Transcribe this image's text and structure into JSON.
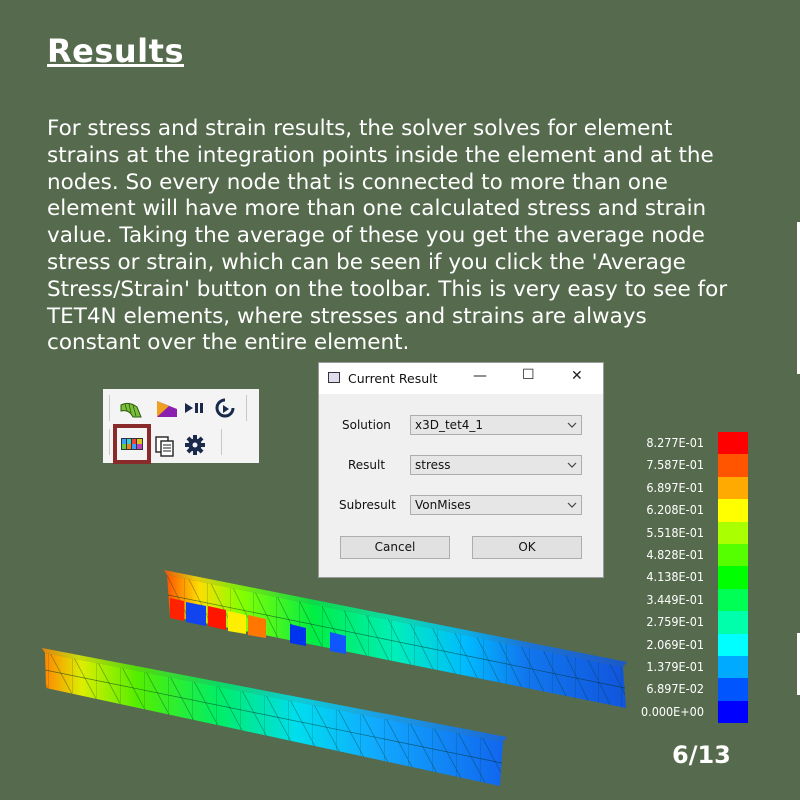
{
  "slide": {
    "title": "Results",
    "lines": [
      "For stress and strain results, the solver solves for element",
      "strains at the integration points inside the element and at the",
      "nodes. So every node that is connected to more than one",
      "element will have more than one calculated stress and strain",
      "value. Taking the average of these you get the average node",
      "stress or strain, which can be seen if you click the 'Average",
      "Stress/Strain' button on the toolbar. This is very easy to see for",
      "TET4N elements, where stresses and strains are always",
      "constant over the entire element."
    ],
    "page_number": "6/13"
  },
  "toolbar": {
    "icons": [
      "mesh-icon",
      "deform-icon",
      "play-pause-icon",
      "refresh-icon",
      "average-stress-strain-icon",
      "copy-icon",
      "gear-icon"
    ]
  },
  "dialog": {
    "title": "Current Result",
    "minimize_glyph": "—",
    "maximize_glyph": "☐",
    "close_glyph": "✕",
    "solution_label": "Solution",
    "solution_value": "x3D_tet4_1",
    "result_label": "Result",
    "result_value": "stress",
    "subresult_label": "Subresult",
    "subresult_value": "VonMises",
    "cancel_label": "Cancel",
    "ok_label": "OK",
    "dropdown_glyph": "⌄"
  },
  "legend": {
    "items": [
      {
        "label": "8.277E-01",
        "color": "#ff0000"
      },
      {
        "label": "7.587E-01",
        "color": "#ff5500"
      },
      {
        "label": "6.897E-01",
        "color": "#ffaa00"
      },
      {
        "label": "6.208E-01",
        "color": "#ffff00"
      },
      {
        "label": "5.518E-01",
        "color": "#aaff00"
      },
      {
        "label": "4.828E-01",
        "color": "#55ff00"
      },
      {
        "label": "4.138E-01",
        "color": "#00ff00"
      },
      {
        "label": "3.449E-01",
        "color": "#00ff55"
      },
      {
        "label": "2.759E-01",
        "color": "#00ffaa"
      },
      {
        "label": "2.069E-01",
        "color": "#00ffff"
      },
      {
        "label": "1.379E-01",
        "color": "#00aaff"
      },
      {
        "label": "6.897E-02",
        "color": "#0055ff"
      },
      {
        "label": "0.000E+00",
        "color": "#0000ff"
      }
    ]
  },
  "colors": {
    "background": "#566b4e",
    "highlight_border": "#8a2b2b"
  }
}
